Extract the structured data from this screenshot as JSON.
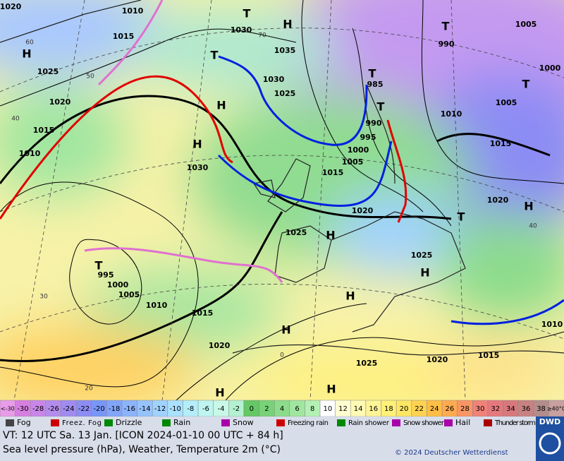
{
  "map": {
    "pressure_labels": [
      "1020",
      "1010",
      "1015",
      "1025",
      "1020",
      "1015",
      "1010",
      "1030",
      "1035",
      "1030",
      "1025",
      "985",
      "990",
      "995",
      "1000",
      "1005",
      "1015",
      "1030",
      "1020",
      "1025",
      "1025",
      "1010",
      "1005",
      "1015",
      "1020",
      "1005",
      "1000",
      "990",
      "995",
      "1000",
      "1005",
      "1010",
      "1015",
      "1020",
      "1025",
      "1020",
      "1015",
      "1010"
    ],
    "centers": [
      "H",
      "T",
      "H",
      "T",
      "H",
      "H",
      "T",
      "T",
      "T",
      "T",
      "H",
      "T",
      "H",
      "H",
      "H",
      "H",
      "H",
      "H",
      "T"
    ],
    "isotherm_labels": [
      "60",
      "50",
      "40",
      "30",
      "70",
      "20",
      "0",
      "40"
    ]
  },
  "colorbar": {
    "labels": [
      "<-30",
      "-30",
      "-28",
      "-26",
      "-24",
      "-22",
      "-20",
      "-18",
      "-16",
      "-14",
      "-12",
      "-10",
      "-8",
      "-6",
      "-4",
      "-2",
      "0",
      "2",
      "4",
      "6",
      "8",
      "10",
      "12",
      "14",
      "16",
      "18",
      "20",
      "22",
      "24",
      "26",
      "28",
      "30",
      "32",
      "34",
      "36",
      "38",
      "≥40°C"
    ],
    "colors": [
      "#e89be8",
      "#d77fe0",
      "#c887e8",
      "#b48cec",
      "#a08cf0",
      "#8c8cf4",
      "#7896f8",
      "#82a5fa",
      "#8cb4fc",
      "#96c3fe",
      "#a0d2ff",
      "#aae1ff",
      "#b4eefa",
      "#bef5f0",
      "#c8f8e6",
      "#b4f0d2",
      "#64c864",
      "#78d278",
      "#8cdc8c",
      "#a0e6a0",
      "#b4f0b4",
      "#ffffff",
      "#ffffd2",
      "#fffab4",
      "#fff596",
      "#fff078",
      "#ffe664",
      "#ffd250",
      "#ffbe46",
      "#ffaa50",
      "#fa9664",
      "#f08278",
      "#e6787d",
      "#d7787d",
      "#c88282",
      "#b48c8c",
      "#c8a0a0"
    ]
  },
  "legend": [
    "Fog",
    "Freez. Fog",
    "Drizzle",
    "Rain",
    "Snow",
    "Freezing rain",
    "Rain shower",
    "Snow shower",
    "Hail",
    "Thunder storm"
  ],
  "footer": {
    "valid_time": "VT: 12 UTC Sa.  13 Jan. [ICON 2024-01-10  00 UTC + 84 h]",
    "description": "Sea level pressure (hPa), Weather, Temperature 2m (°C)",
    "copyright": "© 2024 Deutscher Wetterdienst",
    "logo": "DWD"
  }
}
